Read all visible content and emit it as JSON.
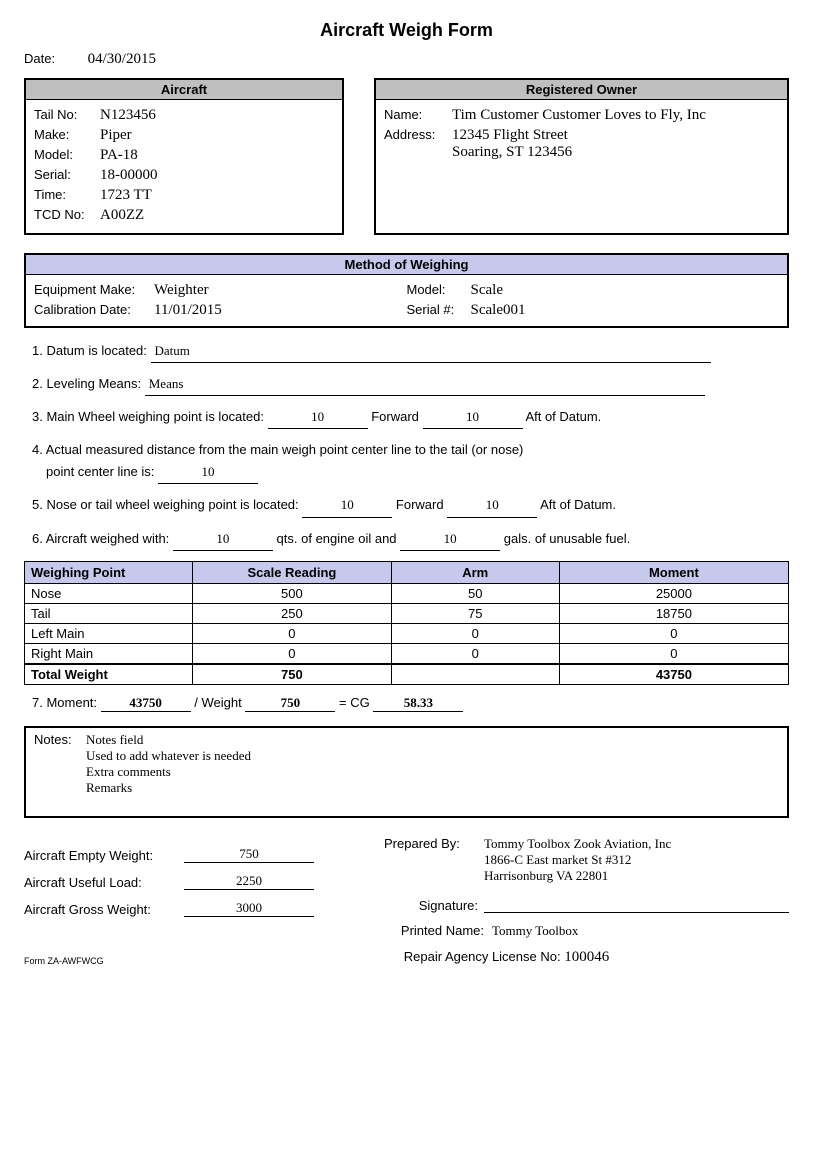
{
  "title": "Aircraft Weigh Form",
  "date_label": "Date:",
  "date_value": "04/30/2015",
  "aircraft": {
    "header": "Aircraft",
    "tail_no_label": "Tail No:",
    "tail_no": "N123456",
    "make_label": "Make:",
    "make": "Piper",
    "model_label": "Model:",
    "model": "PA-18",
    "serial_label": "Serial:",
    "serial": "18-00000",
    "time_label": "Time:",
    "time": "1723 TT",
    "tcd_label": "TCD No:",
    "tcd": "A00ZZ"
  },
  "owner": {
    "header": "Registered Owner",
    "name_label": "Name:",
    "name": "Tim Customer Customer Loves to Fly, Inc",
    "address_label": "Address:",
    "address": "12345 Flight Street\nSoaring, ST 123456"
  },
  "method": {
    "header": "Method of Weighing",
    "equip_make_label": "Equipment Make:",
    "equip_make": "Weighter",
    "cal_date_label": "Calibration Date:",
    "cal_date": "11/01/2015",
    "model_label": "Model:",
    "model": "Scale",
    "serial_label": "Serial #:",
    "serial": "Scale001"
  },
  "q1": {
    "label": "1. Datum is located:",
    "value": "Datum"
  },
  "q2": {
    "label": "2. Leveling Means:",
    "value": "Means"
  },
  "q3": {
    "prefix": "3. Main Wheel weighing point is located:",
    "fwd_val": "10",
    "fwd_label": "Forward",
    "aft_val": "10",
    "aft_label": "Aft of Datum."
  },
  "q4": {
    "line1": "4. Actual measured distance from the main weigh point center line to the tail (or nose)",
    "line2_prefix": "point center line is:",
    "value": "10"
  },
  "q5": {
    "prefix": "5. Nose or tail wheel weighing point is located:",
    "fwd_val": "10",
    "fwd_label": "Forward",
    "aft_val": "10",
    "aft_label": "Aft of Datum."
  },
  "q6": {
    "prefix": "6. Aircraft weighed with:",
    "oil_val": "10",
    "oil_label": "qts. of engine oil and",
    "fuel_val": "10",
    "fuel_label": "gals. of unusable fuel."
  },
  "weigh_table": {
    "headers": {
      "point": "Weighing Point",
      "scale": "Scale Reading",
      "arm": "Arm",
      "moment": "Moment"
    },
    "rows": [
      {
        "point": "Nose",
        "scale": "500",
        "arm": "50",
        "moment": "25000"
      },
      {
        "point": "Tail",
        "scale": "250",
        "arm": "75",
        "moment": "18750"
      },
      {
        "point": "Left Main",
        "scale": "0",
        "arm": "0",
        "moment": "0"
      },
      {
        "point": "Right Main",
        "scale": "0",
        "arm": "0",
        "moment": "0"
      }
    ],
    "total_label": "Total Weight",
    "total_scale": "750",
    "total_moment": "43750"
  },
  "cg": {
    "prefix": "7. Moment:",
    "moment": "43750",
    "div_label": "/ Weight",
    "weight": "750",
    "eq_label": "= CG",
    "cg": "58.33"
  },
  "notes": {
    "label": "Notes:",
    "text": "Notes field\nUsed to add whatever is needed\nExtra comments\nRemarks"
  },
  "summary": {
    "empty_label": "Aircraft Empty Weight:",
    "empty": "750",
    "useful_label": "Aircraft Useful Load:",
    "useful": "2250",
    "gross_label": "Aircraft Gross Weight:",
    "gross": "3000"
  },
  "prepared": {
    "label": "Prepared By:",
    "text": "Tommy Toolbox Zook Aviation, Inc\n1866-C East market St #312\nHarrisonburg VA 22801"
  },
  "signature_label": "Signature:",
  "printed_name_label": "Printed Name:",
  "printed_name": "Tommy Toolbox",
  "license_label": "Repair Agency License No:",
  "license_no": "100046",
  "form_id": "Form ZA-AWFWCG",
  "colors": {
    "grey_header": "#bfbfbf",
    "blue_header": "#c6c9ec",
    "border": "#000000"
  }
}
